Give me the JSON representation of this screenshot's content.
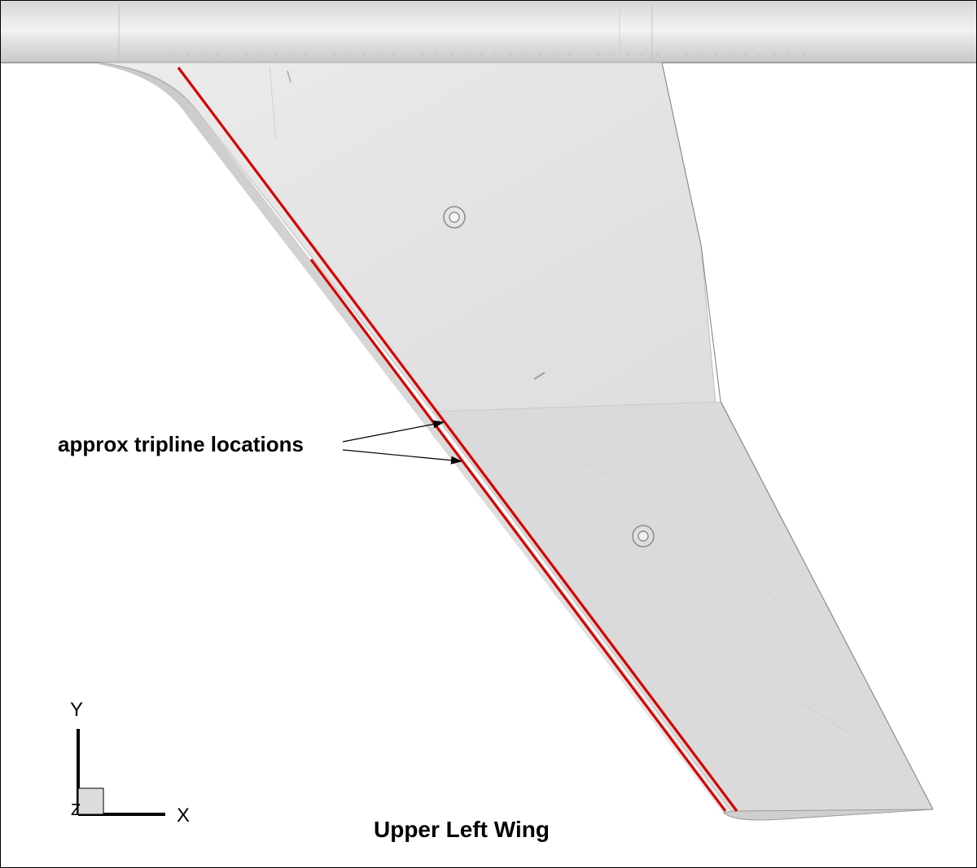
{
  "figure": {
    "title": "Upper Left Wing",
    "callout_text": "approx tripline locations",
    "axes": {
      "y": "Y",
      "x": "X",
      "z": "Z"
    }
  },
  "colors": {
    "tripline": "#d40000",
    "surface": "#e3e3e3",
    "surface_outboard": "#d7d7d7",
    "fuselage": "#e0e0e0",
    "background": "#ffffff",
    "annotation": "#000000"
  },
  "icons": {
    "fastener_inboard": "bolt-head-icon",
    "fastener_outboard": "bolt-head-icon"
  }
}
